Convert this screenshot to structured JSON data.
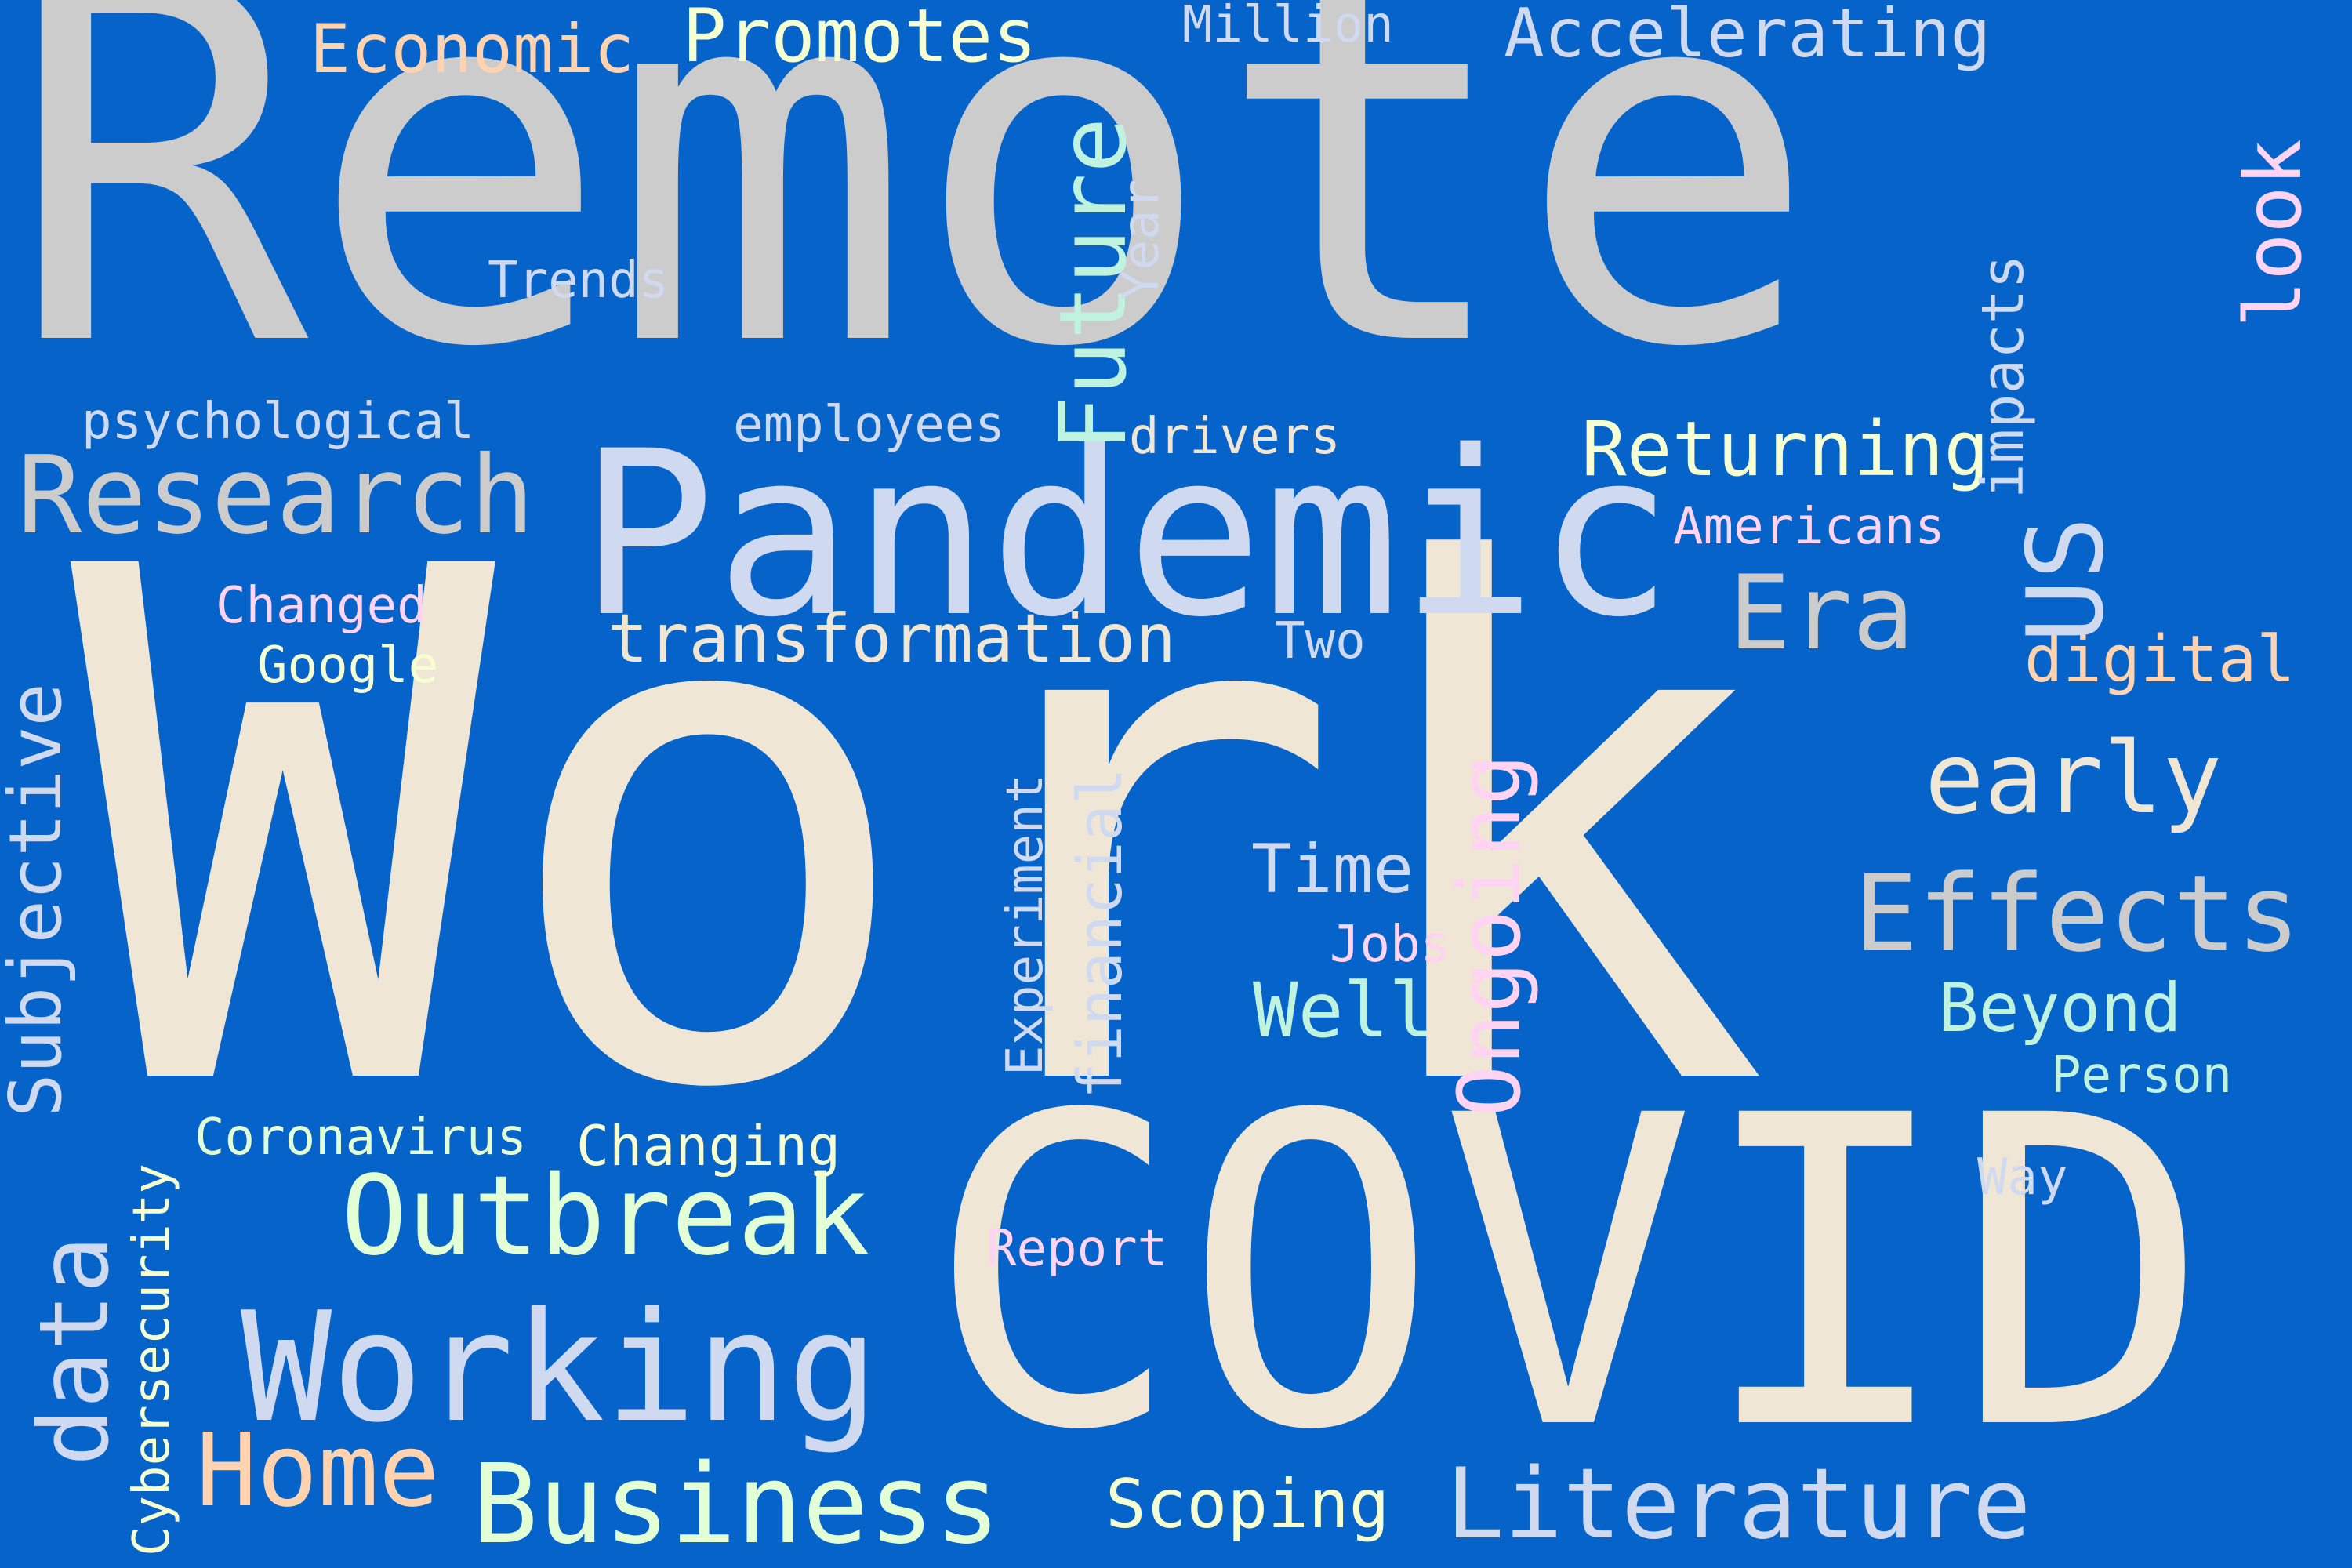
{
  "background": "#0563c9",
  "words": {
    "work": {
      "text": "Work",
      "color": "#f0e6d6"
    },
    "remote": {
      "text": "Remote",
      "color": "#cccccc"
    },
    "covid": {
      "text": "COVID",
      "color": "#f0e6d6"
    },
    "pandemic": {
      "text": "Pandemic",
      "color": "#cfd9ef"
    },
    "working": {
      "text": "Working",
      "color": "#cfd9ef"
    },
    "research": {
      "text": "Research",
      "color": "#cccccc"
    },
    "outbreak": {
      "text": "Outbreak",
      "color": "#e3ffd6"
    },
    "business": {
      "text": "Business",
      "color": "#e3ffd6"
    },
    "literature": {
      "text": "Literature",
      "color": "#cfd9ef"
    },
    "effects": {
      "text": "Effects",
      "color": "#cccccc"
    },
    "early": {
      "text": "early",
      "color": "#f0e6d6"
    },
    "era": {
      "text": "Era",
      "color": "#cccccc"
    },
    "home": {
      "text": "Home",
      "color": "#ffd3b0"
    },
    "transformation": {
      "text": "transformation",
      "color": "#f0e6d6"
    },
    "returning": {
      "text": "Returning",
      "color": "#f5ffd1"
    },
    "subjective": {
      "text": "Subjective",
      "color": "#cfd9ef"
    },
    "data": {
      "text": "data",
      "color": "#cfd9ef"
    },
    "ongoing": {
      "text": "Ongoing",
      "color": "#ffd3f2"
    },
    "future": {
      "text": "Future",
      "color": "#bff2df"
    },
    "us": {
      "text": "US",
      "color": "#cfd9ef"
    },
    "look": {
      "text": "look",
      "color": "#ffd3f2"
    },
    "financial": {
      "text": "financial",
      "color": "#cfd9ef"
    },
    "promotes": {
      "text": "Promotes",
      "color": "#f5ffd1"
    },
    "accelerating": {
      "text": "Accelerating",
      "color": "#cfd9ef"
    },
    "economic": {
      "text": "Economic",
      "color": "#ffd3b0"
    },
    "beyond": {
      "text": "Beyond",
      "color": "#bff2df"
    },
    "well": {
      "text": "Well",
      "color": "#bff2df"
    },
    "time": {
      "text": "Time",
      "color": "#cfd9ef"
    },
    "digital": {
      "text": "digital",
      "color": "#ffd3b0"
    },
    "scoping": {
      "text": "Scoping",
      "color": "#f5ffd1"
    },
    "impacts": {
      "text": "impacts",
      "color": "#cfd9ef"
    },
    "changing": {
      "text": "Changing",
      "color": "#f5ffd1"
    },
    "coronavirus": {
      "text": "Coronavirus",
      "color": "#e3ffd6"
    },
    "cybersecurity": {
      "text": "Cybersecurity",
      "color": "#f5ffd1"
    },
    "psychological": {
      "text": "psychological",
      "color": "#cfd9ef"
    },
    "employees": {
      "text": "employees",
      "color": "#cfd9ef"
    },
    "trends": {
      "text": "Trends",
      "color": "#cfd9ef"
    },
    "changed": {
      "text": "Changed",
      "color": "#ffd3f2"
    },
    "google": {
      "text": "Google",
      "color": "#f5ffd1"
    },
    "million": {
      "text": "Million",
      "color": "#cfd9ef"
    },
    "drivers": {
      "text": "drivers",
      "color": "#f0e6d6"
    },
    "americans": {
      "text": "Americans",
      "color": "#ffd3f2"
    },
    "year": {
      "text": "Year",
      "color": "#cfd9ef"
    },
    "two": {
      "text": "Two",
      "color": "#cfd9ef"
    },
    "experiment": {
      "text": "Experiment",
      "color": "#cfd9ef"
    },
    "jobs": {
      "text": "Jobs",
      "color": "#ffd3f2"
    },
    "person": {
      "text": "Person",
      "color": "#bff2df"
    },
    "way": {
      "text": "Way",
      "color": "#cfd9ef"
    },
    "report": {
      "text": "Report",
      "color": "#ffd3f2"
    }
  }
}
